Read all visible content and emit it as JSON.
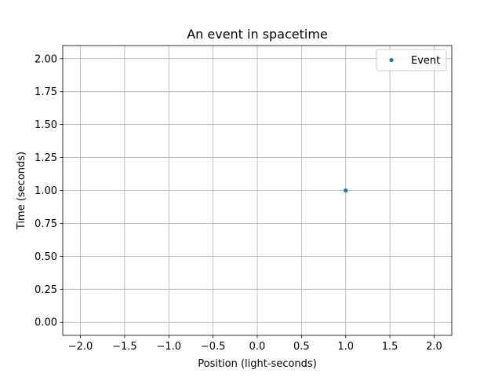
{
  "chart_data": {
    "type": "scatter",
    "title": "An event in spacetime",
    "xlabel": "Position (light-seconds)",
    "ylabel": "Time (seconds)",
    "xlim": [
      -2.2,
      2.2
    ],
    "ylim": [
      -0.1,
      2.1
    ],
    "x_ticks": [
      -2.0,
      -1.5,
      -1.0,
      -0.5,
      0.0,
      0.5,
      1.0,
      1.5,
      2.0
    ],
    "x_tick_labels": [
      "−2.0",
      "−1.5",
      "−1.0",
      "−0.5",
      "0.0",
      "0.5",
      "1.0",
      "1.5",
      "2.0"
    ],
    "y_ticks": [
      0.0,
      0.25,
      0.5,
      0.75,
      1.0,
      1.25,
      1.5,
      1.75,
      2.0
    ],
    "y_tick_labels": [
      "0.00",
      "0.25",
      "0.50",
      "0.75",
      "1.00",
      "1.25",
      "1.50",
      "1.75",
      "2.00"
    ],
    "grid": true,
    "legend_position": "top-right",
    "series": [
      {
        "name": "Event",
        "color": "#1f77b4",
        "marker": "point",
        "points": [
          {
            "x": 1.0,
            "y": 1.0
          }
        ]
      }
    ]
  }
}
